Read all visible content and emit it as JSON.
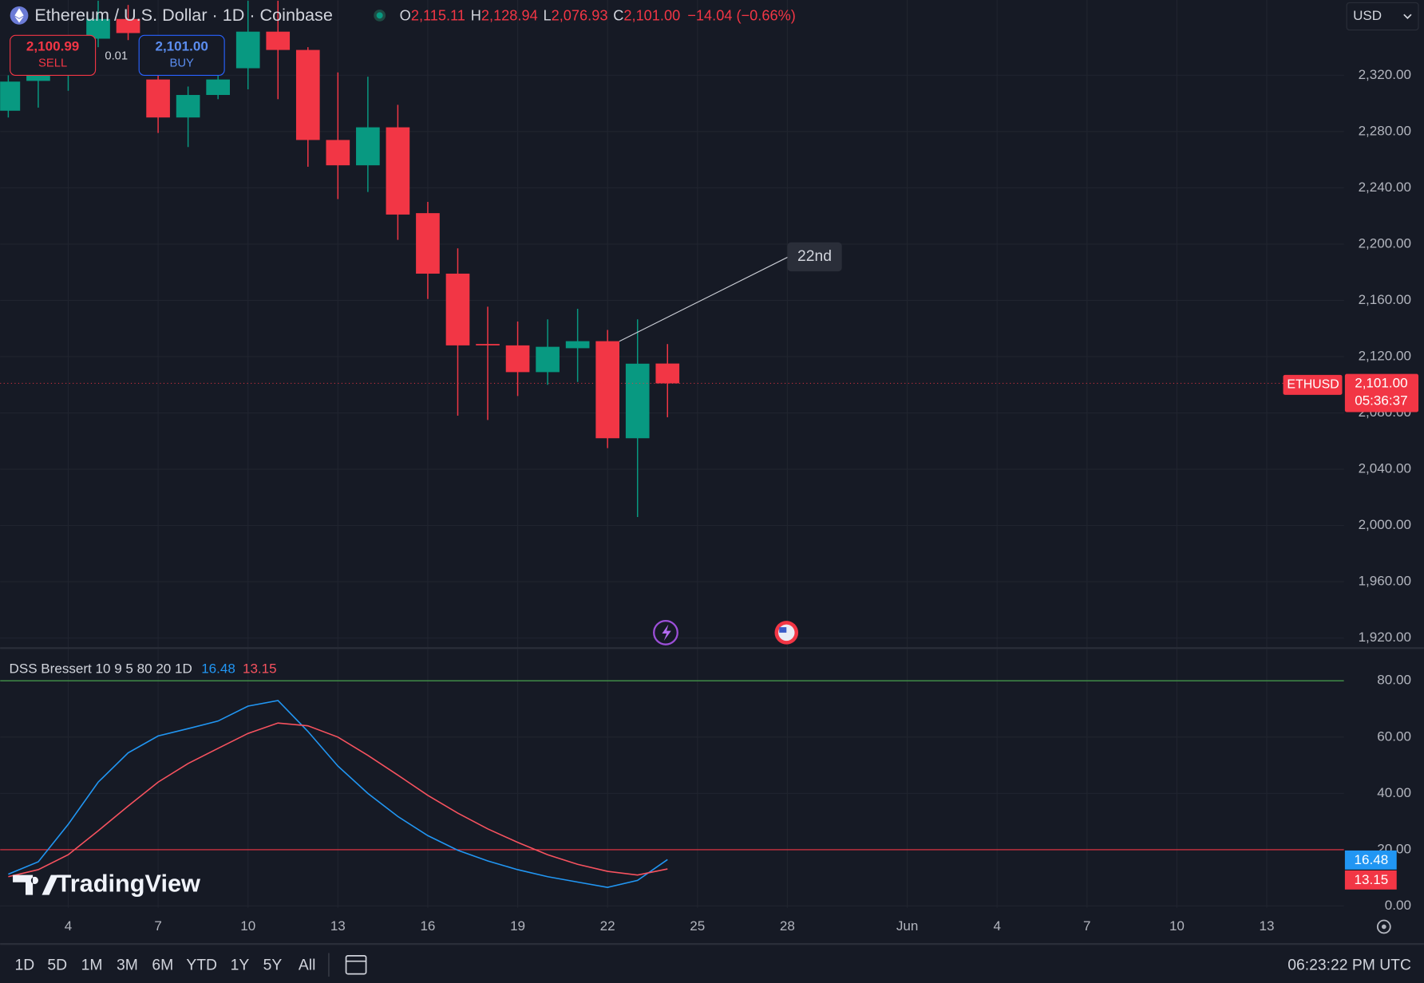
{
  "chart_data": [
    {
      "type": "candlestick",
      "title": "Ethereum / U.S. Dollar · 1D · Coinbase",
      "legend": {
        "O": "O",
        "open": "2,115.11",
        "H": "H",
        "high": "2,128.94",
        "L": "L",
        "low": "2,076.93",
        "C": "C",
        "close": "2,101.00",
        "change": "−14.04 (−0.66%)"
      },
      "x": [
        2,
        3,
        4,
        5,
        6,
        7,
        8,
        9,
        10,
        11,
        12,
        13,
        14,
        15,
        16,
        17,
        18,
        19,
        20,
        21,
        22,
        23,
        24
      ],
      "open": [
        2294.8,
        2316,
        2320,
        2346,
        2360,
        2317,
        2290,
        2306,
        2325,
        2351,
        2338,
        2274,
        2256,
        2283,
        2222,
        2179,
        2129,
        2128,
        2109,
        2126,
        2131,
        2062,
        2115.11
      ],
      "high": [
        2320,
        2335,
        2345,
        2373,
        2370,
        2330,
        2312,
        2338,
        2373,
        2373,
        2340,
        2322,
        2319,
        2299,
        2230,
        2197,
        2155.5,
        2145,
        2146.5,
        2154,
        2139,
        2146.5,
        2128.94
      ],
      "low": [
        2290,
        2297,
        2309,
        2340,
        2345,
        2279,
        2269,
        2303,
        2310,
        2303,
        2255,
        2232,
        2237,
        2203,
        2161,
        2078,
        2075,
        2092,
        2100,
        2102,
        2055,
        2006,
        2076.93
      ],
      "close": [
        2315.5,
        2320,
        2330,
        2360,
        2350,
        2290,
        2306,
        2317,
        2351,
        2338,
        2274,
        2256,
        2283,
        2221,
        2179,
        2128,
        2128,
        2109,
        2127,
        2131,
        2062,
        2115,
        2101.0
      ],
      "up_color": "#089981",
      "down_color": "#f23645",
      "xlim": [
        1.727,
        46.576
      ],
      "xticks": [
        4,
        7,
        10,
        13,
        16,
        19,
        22,
        25,
        28,
        {
          "value": 32,
          "label": "Jun"
        },
        {
          "value": 35,
          "label": "4"
        },
        {
          "value": 38,
          "label": "7"
        },
        {
          "value": 41,
          "label": "10"
        },
        {
          "value": 44,
          "label": "13"
        }
      ],
      "ylim": [
        1913.5,
        2373.5
      ],
      "yticks": [
        {
          "value": 1920,
          "label": "1,920.00"
        },
        {
          "value": 1960,
          "label": "1,960.00"
        },
        {
          "value": 2000,
          "label": "2,000.00"
        },
        {
          "value": 2040,
          "label": "2,040.00"
        },
        {
          "value": 2080,
          "label": "2,080.00"
        },
        {
          "value": 2120,
          "label": "2,120.00"
        },
        {
          "value": 2160,
          "label": "2,160.00"
        },
        {
          "value": 2200,
          "label": "2,200.00"
        },
        {
          "value": 2240,
          "label": "2,240.00"
        },
        {
          "value": 2280,
          "label": "2,280.00"
        },
        {
          "value": 2320,
          "label": "2,320.00"
        }
      ],
      "grid": true,
      "annotation": {
        "text": "22nd"
      },
      "symbol": "ETHUSD",
      "countdown": "05:36:37",
      "currency": "USD"
    },
    {
      "type": "line",
      "title": "DSS Bressert 10 9 5 80 20 1D",
      "x": [
        2,
        3,
        4,
        5,
        6,
        7,
        8,
        9,
        10,
        11,
        12,
        13,
        14,
        15,
        16,
        17,
        18,
        19,
        20,
        21,
        22,
        23,
        24
      ],
      "series": [
        {
          "color": "#2196f3",
          "values": [
            11.3,
            15.7,
            29,
            44,
            54.4,
            60.4,
            63,
            65.7,
            71,
            73,
            62,
            49.7,
            40,
            31.8,
            25,
            19.8,
            16,
            12.9,
            10.4,
            8.5,
            6.6,
            9.1,
            16.48
          ]
        },
        {
          "color": "#f7525f",
          "values": [
            10.4,
            12.9,
            18.2,
            26.7,
            35.5,
            44,
            50.6,
            56,
            61.3,
            65,
            64,
            60,
            53.5,
            46.5,
            39.3,
            33,
            27.4,
            22.6,
            18.2,
            14.8,
            12.3,
            11,
            13.15
          ]
        }
      ],
      "levels": [
        {
          "value": 80,
          "color": "#4caf50"
        },
        {
          "value": 20,
          "color": "#f23645"
        }
      ],
      "xlim": [
        1.727,
        46.576
      ],
      "ylim": [
        -0.6,
        91.3
      ],
      "yticks": [
        {
          "value": 0,
          "label": "0.00"
        },
        {
          "value": 20,
          "label": "20.00"
        },
        {
          "value": 40,
          "label": "40.00"
        },
        {
          "value": 60,
          "label": "60.00"
        },
        {
          "value": 80,
          "label": "80.00"
        }
      ],
      "grid": true
    }
  ],
  "trade": {
    "sell_price": "2,100.99",
    "sell": "SELL",
    "quantity": "0.01",
    "buy_price": "2,101.00",
    "buy": "BUY"
  },
  "brand": "TradingView",
  "toolbar": {
    "ranges": [
      "1D",
      "5D",
      "1M",
      "3M",
      "6M",
      "YTD",
      "1Y",
      "5Y",
      "All"
    ],
    "clock": "06:23:22 PM UTC"
  }
}
